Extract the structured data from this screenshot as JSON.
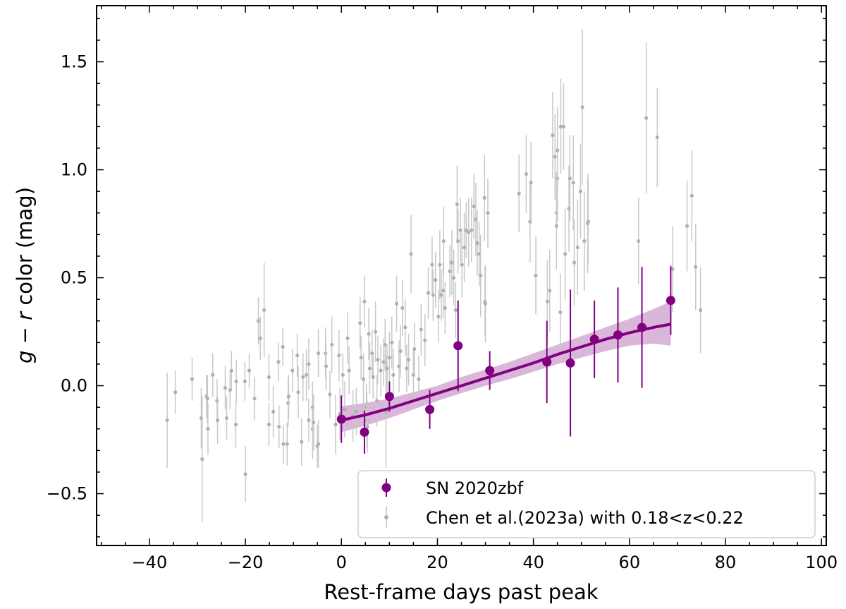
{
  "chart_data": {
    "type": "scatter",
    "xlabel": "Rest-frame days past peak",
    "ylabel_var1": "g",
    "ylabel_op": " − ",
    "ylabel_var2": "r",
    "ylabel_rest": " color (mag)",
    "xlim": [
      -51,
      101
    ],
    "ylim": [
      -0.74,
      1.76
    ],
    "xticks": [
      -40,
      -20,
      0,
      20,
      40,
      60,
      80,
      100
    ],
    "xtick_labels": [
      "−40",
      "−20",
      "0",
      "20",
      "40",
      "60",
      "80",
      "100"
    ],
    "yticks": [
      -0.5,
      0.0,
      0.5,
      1.0,
      1.5
    ],
    "ytick_labels": [
      "−0.5",
      "0.0",
      "0.5",
      "1.0",
      "1.5"
    ],
    "grid": false,
    "legend_position": "lower-right",
    "series": [
      {
        "name": "SN 2020zbf",
        "color": "#800080",
        "marker": "large-circle",
        "points": [
          {
            "x": 0.0,
            "y": -0.155,
            "err": 0.11
          },
          {
            "x": 4.8,
            "y": -0.215,
            "err": 0.1
          },
          {
            "x": 10.0,
            "y": -0.05,
            "err": 0.07
          },
          {
            "x": 18.4,
            "y": -0.11,
            "err": 0.09
          },
          {
            "x": 24.3,
            "y": 0.185,
            "err": 0.21
          },
          {
            "x": 30.9,
            "y": 0.07,
            "err": 0.09
          },
          {
            "x": 42.8,
            "y": 0.11,
            "err": 0.19
          },
          {
            "x": 47.7,
            "y": 0.105,
            "err": 0.34
          },
          {
            "x": 52.7,
            "y": 0.215,
            "err": 0.18
          },
          {
            "x": 57.6,
            "y": 0.235,
            "err": 0.22
          },
          {
            "x": 62.6,
            "y": 0.27,
            "err": 0.28
          },
          {
            "x": 68.6,
            "y": 0.395,
            "err": 0.16
          }
        ]
      },
      {
        "name": "Chen et al.(2023a) with 0.18<z<0.22",
        "color": "#b0b0b0",
        "marker": "small-dot",
        "points": [
          {
            "x": -36.3,
            "y": -0.16,
            "err": 0.22
          },
          {
            "x": -34.6,
            "y": -0.03,
            "err": 0.1
          },
          {
            "x": -31.1,
            "y": 0.03,
            "err": 0.1
          },
          {
            "x": -29.2,
            "y": -0.15,
            "err": 0.14
          },
          {
            "x": -29.0,
            "y": -0.34,
            "err": 0.29
          },
          {
            "x": -28.1,
            "y": -0.05,
            "err": 0.1
          },
          {
            "x": -27.8,
            "y": -0.2,
            "err": 0.12
          },
          {
            "x": -27.9,
            "y": -0.06,
            "err": 0.11
          },
          {
            "x": -26.8,
            "y": 0.05,
            "err": 0.1
          },
          {
            "x": -25.9,
            "y": -0.07,
            "err": 0.1
          },
          {
            "x": -25.8,
            "y": -0.16,
            "err": 0.11
          },
          {
            "x": -24.2,
            "y": -0.01,
            "err": 0.1
          },
          {
            "x": -23.9,
            "y": -0.15,
            "err": 0.1
          },
          {
            "x": -23.2,
            "y": -0.02,
            "err": 0.09
          },
          {
            "x": -22.9,
            "y": 0.07,
            "err": 0.09
          },
          {
            "x": -22.0,
            "y": -0.18,
            "err": 0.11
          },
          {
            "x": -21.9,
            "y": 0.02,
            "err": 0.1
          },
          {
            "x": -20.1,
            "y": 0.02,
            "err": 0.09
          },
          {
            "x": -20.0,
            "y": -0.41,
            "err": 0.13
          },
          {
            "x": -19.2,
            "y": 0.07,
            "err": 0.08
          },
          {
            "x": -18.1,
            "y": -0.06,
            "err": 0.1
          },
          {
            "x": -17.3,
            "y": 0.3,
            "err": 0.11
          },
          {
            "x": -16.9,
            "y": 0.22,
            "err": 0.1
          },
          {
            "x": -16.1,
            "y": 0.35,
            "err": 0.22
          },
          {
            "x": -15.1,
            "y": 0.04,
            "err": 0.11
          },
          {
            "x": -15.1,
            "y": -0.18,
            "err": 0.1
          },
          {
            "x": -14.2,
            "y": -0.12,
            "err": 0.12
          },
          {
            "x": -13.1,
            "y": 0.11,
            "err": 0.09
          },
          {
            "x": -13.0,
            "y": -0.19,
            "err": 0.1
          },
          {
            "x": -12.2,
            "y": 0.18,
            "err": 0.09
          },
          {
            "x": -12.1,
            "y": -0.27,
            "err": 0.09
          },
          {
            "x": -11.3,
            "y": -0.27,
            "err": 0.1
          },
          {
            "x": -11.1,
            "y": -0.08,
            "err": 0.11
          },
          {
            "x": -11.0,
            "y": -0.05,
            "err": 0.1
          },
          {
            "x": -10.2,
            "y": 0.07,
            "err": 0.1
          },
          {
            "x": -9.2,
            "y": 0.14,
            "err": 0.1
          },
          {
            "x": -9.0,
            "y": -0.03,
            "err": 0.12
          },
          {
            "x": -8.3,
            "y": -0.26,
            "err": 0.11
          },
          {
            "x": -8.0,
            "y": 0.04,
            "err": 0.11
          },
          {
            "x": -7.3,
            "y": 0.05,
            "err": 0.12
          },
          {
            "x": -6.8,
            "y": 0.1,
            "err": 0.12
          },
          {
            "x": -6.8,
            "y": -0.16,
            "err": 0.1
          },
          {
            "x": -6.0,
            "y": -0.2,
            "err": 0.14
          },
          {
            "x": -6.0,
            "y": -0.1,
            "err": 0.12
          },
          {
            "x": -5.8,
            "y": -0.17,
            "err": 0.13
          },
          {
            "x": -5.0,
            "y": -0.28,
            "err": 0.1
          },
          {
            "x": -4.8,
            "y": 0.15,
            "err": 0.11
          },
          {
            "x": -4.8,
            "y": -0.27,
            "err": 0.11
          },
          {
            "x": -3.3,
            "y": 0.15,
            "err": 0.12
          },
          {
            "x": -3.2,
            "y": 0.09,
            "err": 0.11
          },
          {
            "x": -2.4,
            "y": -0.04,
            "err": 0.11
          },
          {
            "x": -2.0,
            "y": 0.19,
            "err": 0.13
          },
          {
            "x": -1.2,
            "y": -0.18,
            "err": 0.14
          },
          {
            "x": -0.5,
            "y": 0.14,
            "err": 0.12
          },
          {
            "x": -0.3,
            "y": -0.13,
            "err": 0.12
          },
          {
            "x": 0.3,
            "y": 0.05,
            "err": 0.1
          },
          {
            "x": 0.7,
            "y": -0.11,
            "err": 0.13
          },
          {
            "x": 1.3,
            "y": 0.22,
            "err": 0.12
          },
          {
            "x": 1.6,
            "y": 0.07,
            "err": 0.11
          },
          {
            "x": 2.4,
            "y": -0.14,
            "err": 0.12
          },
          {
            "x": 3.1,
            "y": -0.12,
            "err": 0.11
          },
          {
            "x": 3.9,
            "y": 0.29,
            "err": 0.12
          },
          {
            "x": 4.1,
            "y": 0.13,
            "err": 0.1
          },
          {
            "x": 4.6,
            "y": 0.03,
            "err": 0.12
          },
          {
            "x": 4.8,
            "y": 0.39,
            "err": 0.12
          },
          {
            "x": 5.2,
            "y": -0.1,
            "err": 0.11
          },
          {
            "x": 5.3,
            "y": -0.16,
            "err": 0.13
          },
          {
            "x": 5.4,
            "y": -0.19,
            "err": 0.12
          },
          {
            "x": 5.7,
            "y": 0.24,
            "err": 0.12
          },
          {
            "x": 5.9,
            "y": 0.08,
            "err": 0.12
          },
          {
            "x": 6.4,
            "y": 0.15,
            "err": 0.11
          },
          {
            "x": 6.6,
            "y": 0.04,
            "err": 0.1
          },
          {
            "x": 7.1,
            "y": 0.25,
            "err": 0.14
          },
          {
            "x": 7.4,
            "y": -0.07,
            "err": 0.12
          },
          {
            "x": 7.6,
            "y": 0.12,
            "err": 0.11
          },
          {
            "x": 8.2,
            "y": 0.07,
            "err": 0.12
          },
          {
            "x": 8.8,
            "y": 0.11,
            "err": 0.11
          },
          {
            "x": 9.1,
            "y": 0.19,
            "err": 0.12
          },
          {
            "x": 9.3,
            "y": -0.12,
            "err": 0.26
          },
          {
            "x": 9.5,
            "y": 0.08,
            "err": 0.11
          },
          {
            "x": 10.0,
            "y": 0.13,
            "err": 0.12
          },
          {
            "x": 10.5,
            "y": 0.2,
            "err": 0.12
          },
          {
            "x": 10.8,
            "y": 0.05,
            "err": 0.12
          },
          {
            "x": 11.5,
            "y": 0.38,
            "err": 0.13
          },
          {
            "x": 12.0,
            "y": 0.09,
            "err": 0.12
          },
          {
            "x": 12.3,
            "y": 0.16,
            "err": 0.12
          },
          {
            "x": 12.7,
            "y": 0.36,
            "err": 0.13
          },
          {
            "x": 13.3,
            "y": 0.27,
            "err": 0.13
          },
          {
            "x": 13.6,
            "y": 0.08,
            "err": 0.11
          },
          {
            "x": 14.0,
            "y": 0.12,
            "err": 0.12
          },
          {
            "x": 14.5,
            "y": 0.61,
            "err": 0.18
          },
          {
            "x": 15.0,
            "y": 0.05,
            "err": 0.12
          },
          {
            "x": 15.2,
            "y": 0.17,
            "err": 0.12
          },
          {
            "x": 16.1,
            "y": 0.03,
            "err": 0.11
          },
          {
            "x": 16.6,
            "y": 0.26,
            "err": 0.12
          },
          {
            "x": 17.4,
            "y": 0.21,
            "err": 0.12
          },
          {
            "x": 18.1,
            "y": 0.43,
            "err": 0.12
          },
          {
            "x": 18.9,
            "y": 0.56,
            "err": 0.13
          },
          {
            "x": 19.1,
            "y": 0.42,
            "err": 0.12
          },
          {
            "x": 19.6,
            "y": 0.49,
            "err": 0.13
          },
          {
            "x": 20.2,
            "y": 0.32,
            "err": 0.12
          },
          {
            "x": 20.5,
            "y": 0.56,
            "err": 0.16
          },
          {
            "x": 20.8,
            "y": 0.42,
            "err": 0.12
          },
          {
            "x": 21.2,
            "y": 0.44,
            "err": 0.13
          },
          {
            "x": 21.3,
            "y": 0.67,
            "err": 0.16
          },
          {
            "x": 21.6,
            "y": 0.36,
            "err": 0.12
          },
          {
            "x": 22.6,
            "y": 0.53,
            "err": 0.12
          },
          {
            "x": 23.0,
            "y": 0.57,
            "err": 0.15
          },
          {
            "x": 23.4,
            "y": 0.5,
            "err": 0.13
          },
          {
            "x": 23.8,
            "y": 0.35,
            "err": 0.13
          },
          {
            "x": 24.1,
            "y": 0.84,
            "err": 0.18
          },
          {
            "x": 24.3,
            "y": 0.67,
            "err": 0.15
          },
          {
            "x": 24.8,
            "y": 0.72,
            "err": 0.15
          },
          {
            "x": 25.1,
            "y": 0.56,
            "err": 0.15
          },
          {
            "x": 25.6,
            "y": 0.64,
            "err": 0.16
          },
          {
            "x": 26.0,
            "y": 0.72,
            "err": 0.13
          },
          {
            "x": 26.5,
            "y": 0.71,
            "err": 0.16
          },
          {
            "x": 27.1,
            "y": 0.72,
            "err": 0.15
          },
          {
            "x": 27.6,
            "y": 0.83,
            "err": 0.15
          },
          {
            "x": 28.0,
            "y": 0.77,
            "err": 0.17
          },
          {
            "x": 28.3,
            "y": 0.66,
            "err": 0.15
          },
          {
            "x": 28.7,
            "y": 0.61,
            "err": 0.15
          },
          {
            "x": 29.0,
            "y": 0.51,
            "err": 0.19
          },
          {
            "x": 29.8,
            "y": 0.87,
            "err": 0.2
          },
          {
            "x": 29.9,
            "y": 0.39,
            "err": 0.16
          },
          {
            "x": 30.0,
            "y": 0.38,
            "err": 0.18
          },
          {
            "x": 30.5,
            "y": 0.8,
            "err": 0.16
          },
          {
            "x": 37.0,
            "y": 0.89,
            "err": 0.18
          },
          {
            "x": 38.5,
            "y": 0.98,
            "err": 0.18
          },
          {
            "x": 39.3,
            "y": 0.76,
            "err": 0.19
          },
          {
            "x": 39.5,
            "y": 0.94,
            "err": 0.19
          },
          {
            "x": 40.5,
            "y": 0.51,
            "err": 0.18
          },
          {
            "x": 42.9,
            "y": 0.39,
            "err": 0.19
          },
          {
            "x": 43.4,
            "y": 0.44,
            "err": 0.19
          },
          {
            "x": 44.0,
            "y": 1.16,
            "err": 0.2
          },
          {
            "x": 44.5,
            "y": 1.06,
            "err": 0.2
          },
          {
            "x": 44.8,
            "y": 0.8,
            "err": 0.19
          },
          {
            "x": 44.8,
            "y": 0.74,
            "err": 0.2
          },
          {
            "x": 45.0,
            "y": 0.96,
            "err": 0.2
          },
          {
            "x": 45.0,
            "y": 1.09,
            "err": 0.2
          },
          {
            "x": 45.6,
            "y": 0.34,
            "err": 0.18
          },
          {
            "x": 45.7,
            "y": 1.2,
            "err": 0.22
          },
          {
            "x": 46.3,
            "y": 1.2,
            "err": 0.2
          },
          {
            "x": 46.6,
            "y": 0.61,
            "err": 0.21
          },
          {
            "x": 47.4,
            "y": 0.82,
            "err": 0.2
          },
          {
            "x": 47.6,
            "y": 0.96,
            "err": 0.2
          },
          {
            "x": 48.3,
            "y": 0.94,
            "err": 0.22
          },
          {
            "x": 48.5,
            "y": 0.57,
            "err": 0.2
          },
          {
            "x": 49.2,
            "y": 0.64,
            "err": 0.22
          },
          {
            "x": 49.8,
            "y": 0.9,
            "err": 0.22
          },
          {
            "x": 50.2,
            "y": 1.29,
            "err": 0.36
          },
          {
            "x": 50.6,
            "y": 0.67,
            "err": 0.23
          },
          {
            "x": 51.3,
            "y": 0.75,
            "err": 0.23
          },
          {
            "x": 51.4,
            "y": 0.76,
            "err": 0.2
          },
          {
            "x": 61.9,
            "y": 0.67,
            "err": 0.2
          },
          {
            "x": 63.5,
            "y": 1.24,
            "err": 0.35
          },
          {
            "x": 65.8,
            "y": 1.15,
            "err": 0.23
          },
          {
            "x": 69.0,
            "y": 0.54,
            "err": 0.2
          },
          {
            "x": 72.0,
            "y": 0.74,
            "err": 0.21
          },
          {
            "x": 73.0,
            "y": 0.88,
            "err": 0.21
          },
          {
            "x": 73.8,
            "y": 0.55,
            "err": 0.2
          },
          {
            "x": 74.8,
            "y": 0.35,
            "err": 0.2
          }
        ]
      }
    ],
    "fit": {
      "color": "#800080",
      "band_color": "#d4aad4",
      "x": [
        0,
        5,
        10,
        15,
        20,
        25,
        30,
        35,
        40,
        45,
        50,
        55,
        60,
        65,
        68.6
      ],
      "y": [
        -0.16,
        -0.135,
        -0.105,
        -0.07,
        -0.035,
        0.0,
        0.035,
        0.07,
        0.105,
        0.145,
        0.18,
        0.215,
        0.245,
        0.27,
        0.285
      ],
      "lower": [
        -0.215,
        -0.185,
        -0.15,
        -0.11,
        -0.07,
        -0.035,
        0.0,
        0.03,
        0.065,
        0.1,
        0.13,
        0.16,
        0.185,
        0.195,
        0.185
      ],
      "upper": [
        -0.095,
        -0.08,
        -0.06,
        -0.03,
        0.0,
        0.04,
        0.075,
        0.11,
        0.15,
        0.19,
        0.23,
        0.27,
        0.31,
        0.355,
        0.39
      ]
    }
  }
}
